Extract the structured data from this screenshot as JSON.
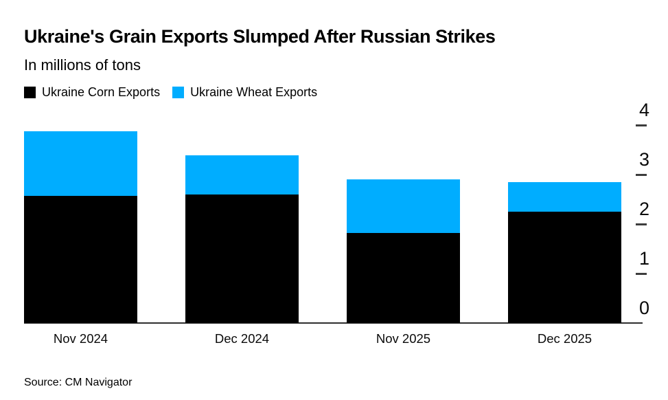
{
  "header": {
    "title": "Ukraine's Grain Exports Slumped After Russian Strikes",
    "subtitle": "In millions of tons"
  },
  "legend": [
    {
      "label": "Ukraine Corn Exports",
      "color": "#000000"
    },
    {
      "label": "Ukraine Wheat Exports",
      "color": "#00ADFF"
    }
  ],
  "footer": {
    "source": "Source: CM Navigator"
  },
  "chart_data": {
    "type": "bar",
    "stacked": true,
    "title": "Ukraine's Grain Exports Slumped After Russian Strikes",
    "subtitle": "In millions of tons",
    "categories": [
      "Nov 2024",
      "Dec 2024",
      "Nov 2025",
      "Dec 2025"
    ],
    "series": [
      {
        "name": "Ukraine Corn Exports",
        "color": "#000000",
        "values": [
          2.57,
          2.6,
          1.82,
          2.25
        ]
      },
      {
        "name": "Ukraine Wheat Exports",
        "color": "#00ADFF",
        "values": [
          1.31,
          0.79,
          1.08,
          0.6
        ]
      }
    ],
    "totals": [
      3.88,
      3.39,
      2.9,
      2.85
    ],
    "xlabel": "",
    "ylabel": "",
    "ylim": [
      0,
      4
    ],
    "yticks": [
      0,
      1,
      2,
      3,
      4
    ],
    "y_axis_side": "right",
    "grid": false,
    "legend_position": "top-left",
    "source": "Source: CM Navigator"
  }
}
